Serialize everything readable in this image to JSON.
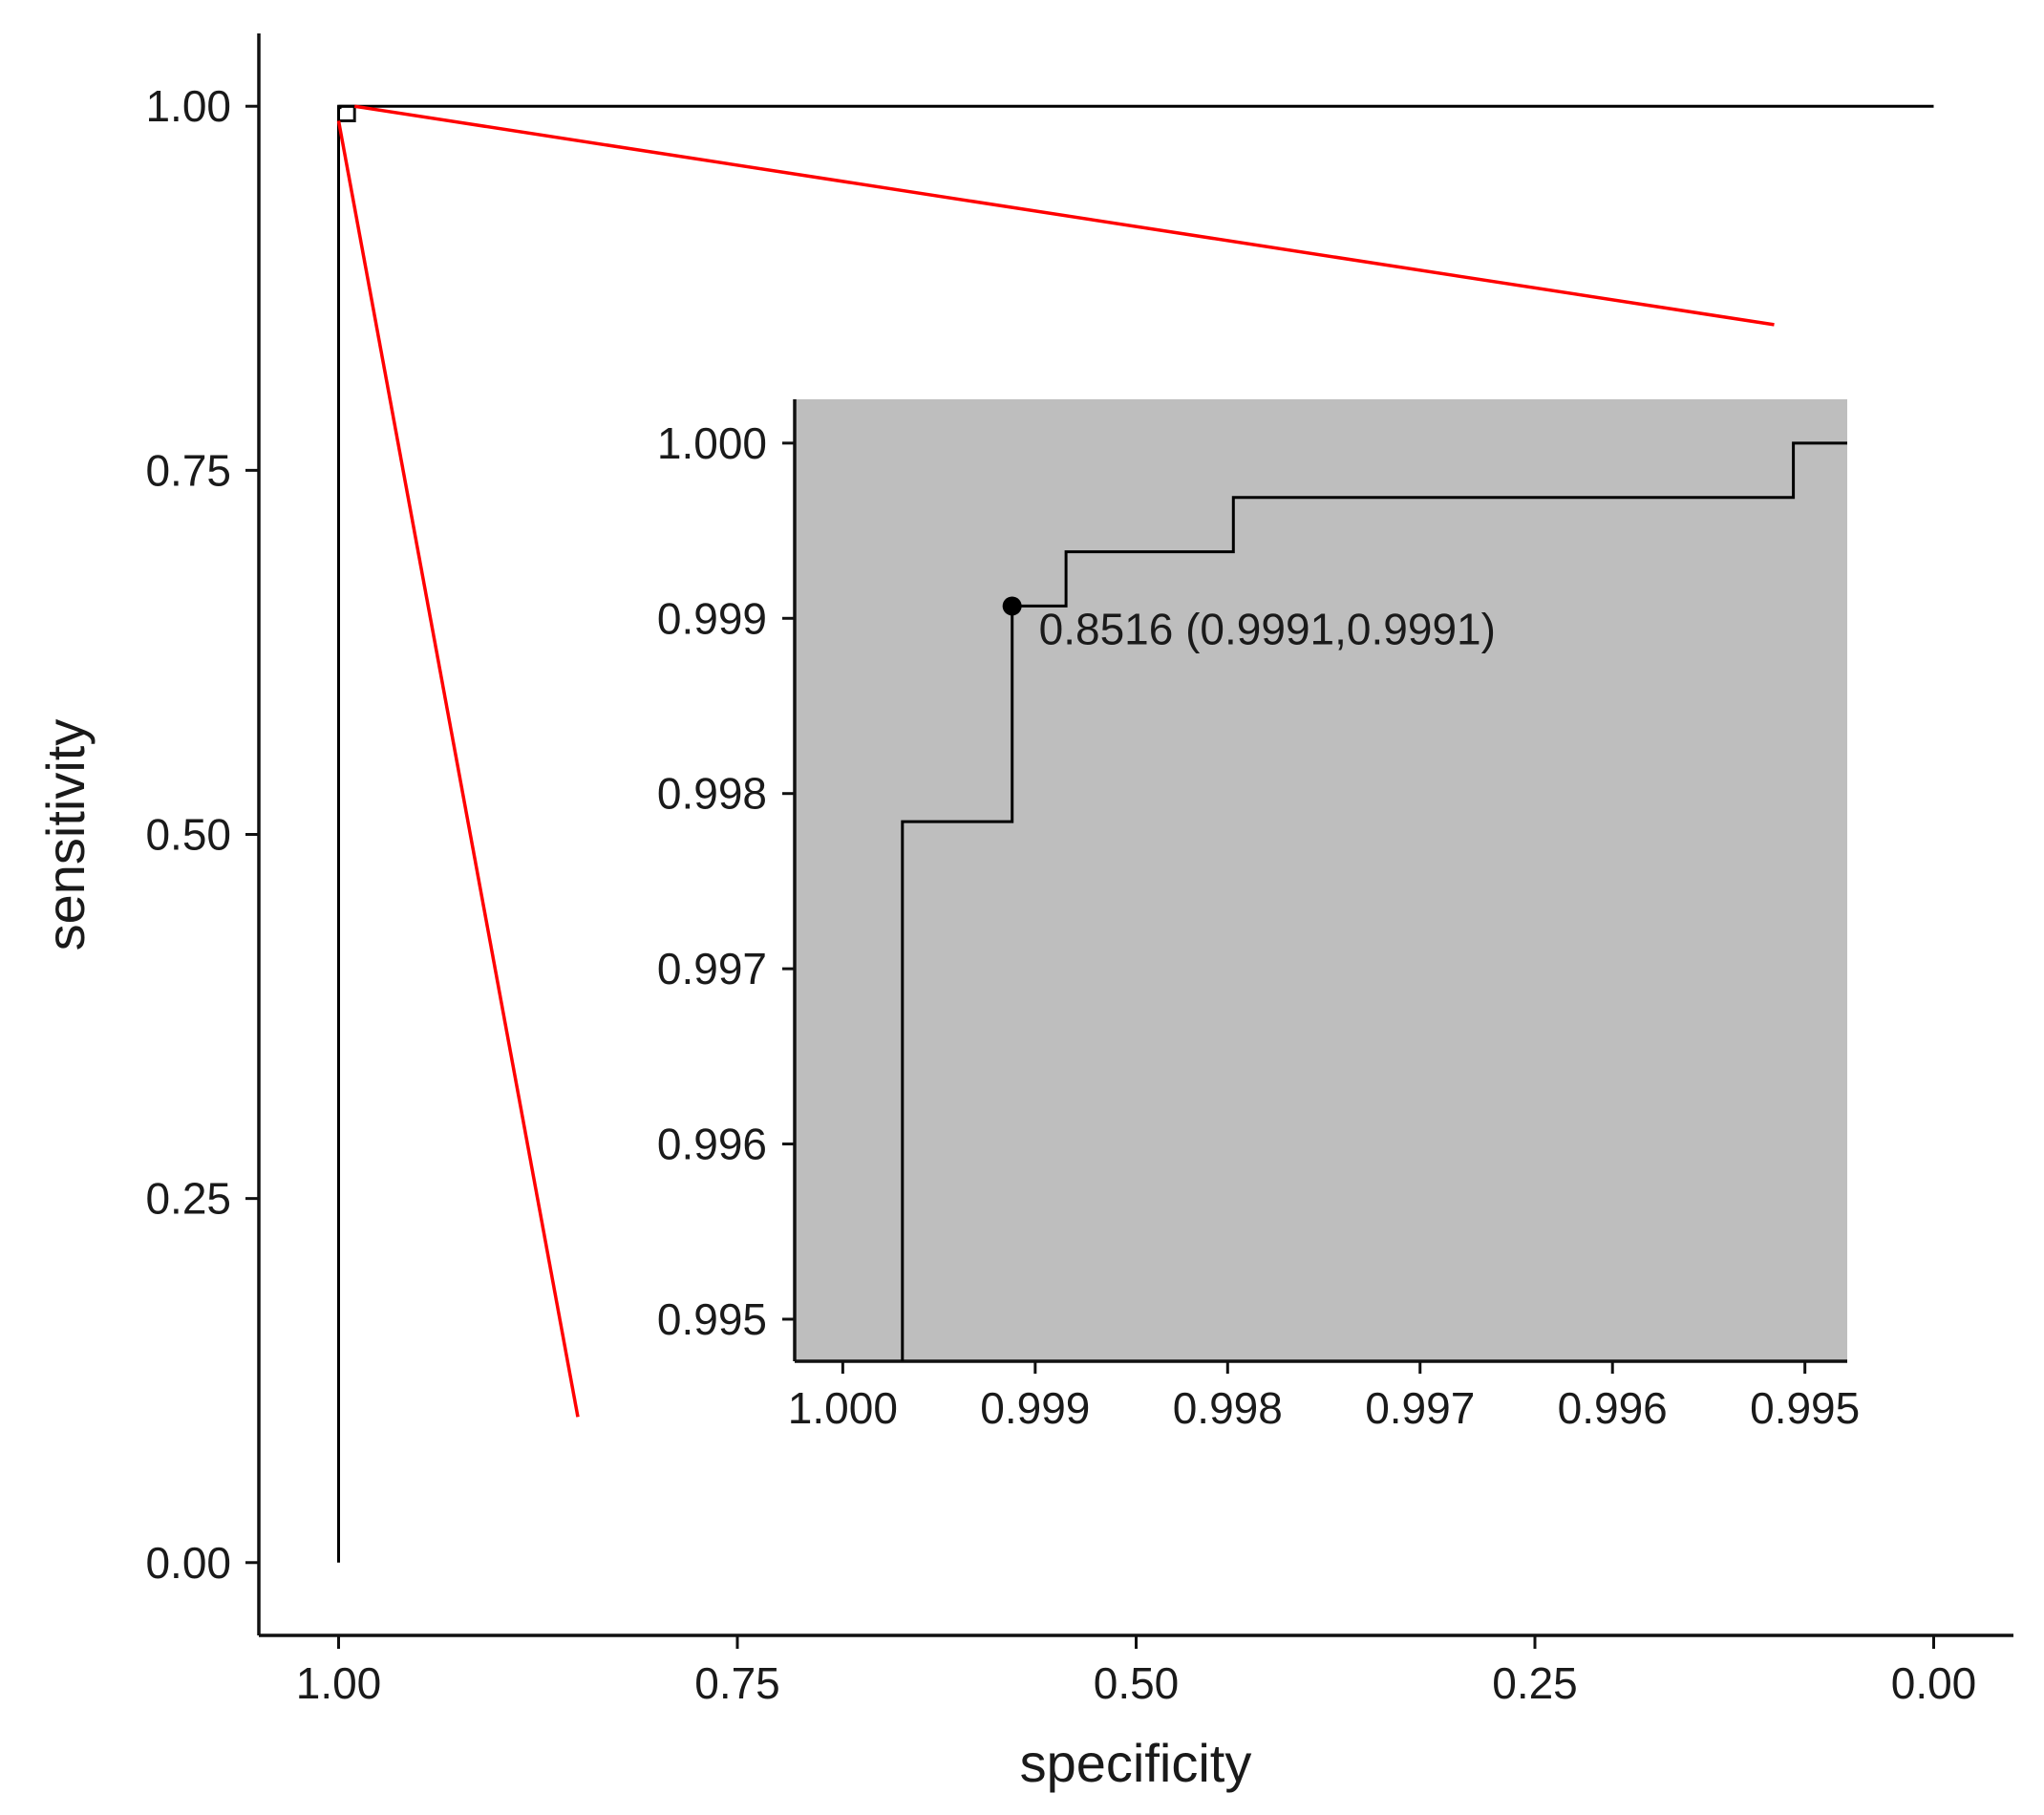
{
  "chart_data": [
    {
      "type": "line",
      "xlabel": "specificity",
      "ylabel": "sensitivity",
      "xlim": [
        1.05,
        -0.05
      ],
      "ylim": [
        -0.05,
        1.05
      ],
      "x_reversed": true,
      "x_ticks": [
        1.0,
        0.75,
        0.5,
        0.25,
        0.0
      ],
      "x_tick_labels": [
        "1.00",
        "0.75",
        "0.50",
        "0.25",
        "0.00"
      ],
      "y_ticks": [
        0.0,
        0.25,
        0.5,
        0.75,
        1.0
      ],
      "y_tick_labels": [
        "0.00",
        "0.25",
        "0.50",
        "0.75",
        "1.00"
      ],
      "grid": false,
      "series": [
        {
          "color": "#000000",
          "points": [
            [
              1.0,
              0.0
            ],
            [
              1.0,
              0.9991
            ],
            [
              0.9991,
              0.9991
            ],
            [
              0.9991,
              1.0
            ],
            [
              0.0,
              1.0
            ]
          ]
        }
      ],
      "zoom_box": {
        "x": [
          0.99,
          1.0
        ],
        "y": [
          0.99,
          1.0
        ]
      },
      "connector_lines": [
        {
          "color": "#ff0000",
          "from": [
            0.99,
            1.0
          ],
          "to": [
            0.1,
            0.85
          ]
        },
        {
          "color": "#ff0000",
          "from": [
            1.0,
            0.99
          ],
          "to": [
            0.85,
            0.1
          ]
        }
      ]
    },
    {
      "type": "line",
      "role": "inset",
      "background": "#bebebe",
      "xlim": [
        1.00025,
        0.99478
      ],
      "ylim": [
        0.99476,
        1.00025
      ],
      "x_reversed": true,
      "x_ticks": [
        1.0,
        0.999,
        0.998,
        0.997,
        0.996,
        0.995
      ],
      "x_tick_labels": [
        "1.000",
        "0.999",
        "0.998",
        "0.997",
        "0.996",
        "0.995"
      ],
      "y_ticks": [
        0.995,
        0.996,
        0.997,
        0.998,
        0.999,
        1.0
      ],
      "y_tick_labels": [
        "0.995",
        "0.996",
        "0.997",
        "0.998",
        "0.999",
        "1.000"
      ],
      "series": [
        {
          "color": "#000000",
          "points": [
            [
              0.99969,
              0.99476
            ],
            [
              0.99969,
              0.99784
            ],
            [
              0.99912,
              0.99784
            ],
            [
              0.99912,
              0.99907
            ],
            [
              0.99884,
              0.99907
            ],
            [
              0.99884,
              0.99938
            ],
            [
              0.99797,
              0.99938
            ],
            [
              0.99797,
              0.99969
            ],
            [
              0.99506,
              0.99969
            ],
            [
              0.99506,
              1.0
            ],
            [
              0.99478,
              1.0
            ]
          ]
        }
      ],
      "highlight_point": {
        "x": 0.99912,
        "y": 0.99907,
        "label": "0.8516 (0.9991,0.9991)"
      }
    }
  ]
}
